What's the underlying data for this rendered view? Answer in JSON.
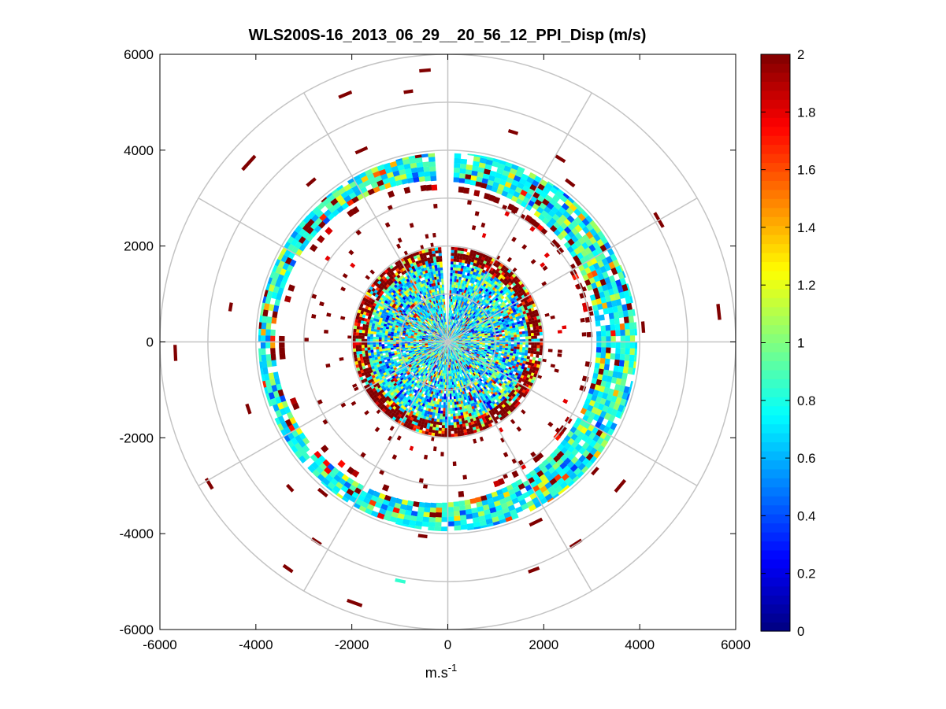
{
  "chart_data": {
    "type": "heatmap",
    "subtype": "polar-ppi",
    "title": "WLS200S-16_2013_06_29__20_56_12_PPI_Disp (m/s)",
    "xlabel": "m.s",
    "xlabel_sup": "-1",
    "ylabel": "",
    "xlim": [
      -6000,
      6000
    ],
    "ylim": [
      -6000,
      6000
    ],
    "xticks": [
      "-6000",
      "-4000",
      "-2000",
      "0",
      "2000",
      "4000",
      "6000"
    ],
    "yticks": [
      "6000",
      "4000",
      "2000",
      "0",
      "-2000",
      "-4000",
      "-6000"
    ],
    "xtick_values": [
      -6000,
      -4000,
      -2000,
      0,
      2000,
      4000,
      6000
    ],
    "ytick_values": [
      6000,
      4000,
      2000,
      0,
      -2000,
      -4000,
      -6000
    ],
    "polar_rings": [
      1000,
      2000,
      3000,
      4000,
      5000,
      6000
    ],
    "polar_spokes_deg": [
      0,
      30,
      60,
      90,
      120,
      150,
      180,
      210,
      240,
      270,
      300,
      330
    ],
    "colorbar": {
      "colormap": "jet",
      "range": [
        0,
        2
      ],
      "ticks": [
        "2",
        "1.8",
        "1.6",
        "1.4",
        "1.2",
        "1",
        "0.8",
        "0.6",
        "0.4",
        "0.2",
        "0"
      ],
      "tick_values": [
        2,
        1.8,
        1.6,
        1.4,
        1.2,
        1,
        0.8,
        0.6,
        0.4,
        0.2,
        0
      ]
    },
    "data_regions": [
      {
        "region": "inner-disk",
        "range_m": [
          0,
          2000
        ],
        "dominant_value": 0.7,
        "spread": [
          0.3,
          2.0
        ]
      },
      {
        "region": "disk-edge",
        "range_m": [
          1700,
          2000
        ],
        "dominant_value": 2.0
      },
      {
        "region": "scatter-band",
        "range_m": [
          2000,
          3000
        ],
        "dominant_value": 2.0
      },
      {
        "region": "main-ring",
        "range_m": [
          3000,
          3950
        ],
        "dominant_value": 0.8,
        "spread": [
          0.4,
          1.3
        ]
      },
      {
        "region": "sparse-outer",
        "range_m": [
          4000,
          6000
        ],
        "dominant_value": 2.0
      }
    ]
  }
}
